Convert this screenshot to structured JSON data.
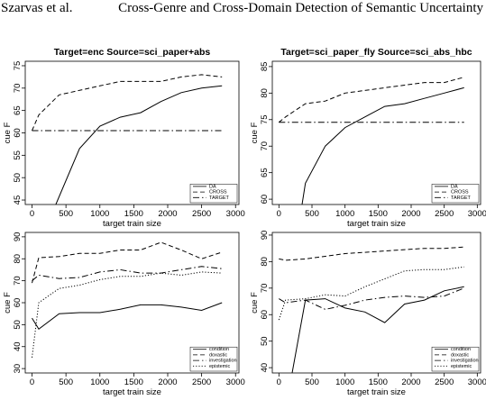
{
  "header": {
    "author": "Szarvas et al.",
    "title": "Cross-Genre and Cross-Domain Detection of Semantic Uncertainty"
  },
  "chart_data": [
    {
      "type": "line",
      "title": "Target=enc Source=sci_paper+abs",
      "xlabel": "target train size",
      "ylabel": "cue F",
      "xlim": [
        -100,
        3050
      ],
      "ylim": [
        44,
        76
      ],
      "xticks": [
        0,
        500,
        1000,
        1500,
        2000,
        2500,
        3000
      ],
      "yticks": [
        45,
        50,
        55,
        60,
        65,
        70,
        75
      ],
      "legend": "bottom-right",
      "series": [
        {
          "name": "DA",
          "dash": "solid",
          "x": [
            350,
            700,
            1000,
            1300,
            1600,
            1900,
            2200,
            2500,
            2800
          ],
          "y": [
            44,
            56.5,
            61.5,
            63.5,
            64.5,
            67,
            69,
            70,
            70.5
          ]
        },
        {
          "name": "CROSS",
          "dash": "dashed",
          "x": [
            0,
            100,
            400,
            700,
            1000,
            1300,
            1600,
            1900,
            2200,
            2500,
            2800
          ],
          "y": [
            60.5,
            64,
            68.5,
            69.5,
            70.5,
            71.5,
            71.5,
            71.5,
            72.5,
            73,
            72.5
          ]
        },
        {
          "name": "TARGET",
          "dash": "dashdot",
          "x": [
            0,
            2800
          ],
          "y": [
            60.5,
            60.5
          ]
        }
      ]
    },
    {
      "type": "line",
      "title": "Target=sci_paper_fly Source=sci_abs_hbc",
      "xlabel": "target train size",
      "ylabel": "cue F",
      "xlim": [
        -100,
        3050
      ],
      "ylim": [
        59,
        86
      ],
      "xticks": [
        0,
        500,
        1000,
        1500,
        2000,
        2500,
        3000
      ],
      "yticks": [
        60,
        65,
        70,
        75,
        80,
        85
      ],
      "legend": "bottom-right",
      "series": [
        {
          "name": "DA",
          "dash": "solid",
          "x": [
            350,
            400,
            700,
            1000,
            1300,
            1600,
            1900,
            2200,
            2500,
            2800
          ],
          "y": [
            59,
            63,
            70,
            73.5,
            75.5,
            77.5,
            78,
            79,
            80,
            81
          ]
        },
        {
          "name": "CROSS",
          "dash": "dashed",
          "x": [
            0,
            100,
            400,
            700,
            1000,
            1300,
            1600,
            1900,
            2200,
            2500,
            2800
          ],
          "y": [
            74.5,
            75.5,
            78,
            78.5,
            80,
            80.5,
            81,
            81.5,
            82,
            82,
            83
          ]
        },
        {
          "name": "TARGET",
          "dash": "dashdot",
          "x": [
            0,
            2800
          ],
          "y": [
            74.5,
            74.5
          ]
        }
      ]
    },
    {
      "type": "line",
      "title": "",
      "xlabel": "target train size",
      "ylabel": "cue F",
      "xlim": [
        -100,
        3050
      ],
      "ylim": [
        28,
        92
      ],
      "xticks": [
        0,
        500,
        1000,
        1500,
        2000,
        2500,
        3000
      ],
      "yticks": [
        30,
        40,
        50,
        60,
        70,
        80,
        90
      ],
      "legend": "bottom-right",
      "series": [
        {
          "name": "condition",
          "dash": "solid",
          "x": [
            0,
            100,
            400,
            700,
            1000,
            1300,
            1600,
            1900,
            2200,
            2500,
            2800
          ],
          "y": [
            53,
            48,
            55,
            55.5,
            55.5,
            57,
            59,
            59,
            58,
            56.5,
            60
          ]
        },
        {
          "name": "doxastic",
          "dash": "dashed",
          "x": [
            0,
            100,
            400,
            700,
            1000,
            1300,
            1600,
            1900,
            2200,
            2500,
            2800
          ],
          "y": [
            69,
            80.5,
            81,
            82.5,
            82.5,
            84,
            84,
            87.5,
            84,
            80,
            83
          ]
        },
        {
          "name": "investigation",
          "dash": "dashdot",
          "x": [
            0,
            100,
            400,
            700,
            1000,
            1300,
            1600,
            1900,
            2200,
            2500,
            2800
          ],
          "y": [
            70,
            72.5,
            71,
            71.5,
            74,
            75,
            73.5,
            73.5,
            75,
            76.5,
            75.5
          ]
        },
        {
          "name": "epistemic",
          "dash": "dotted",
          "x": [
            0,
            100,
            400,
            700,
            1000,
            1300,
            1600,
            1900,
            2200,
            2500,
            2800
          ],
          "y": [
            35,
            60,
            66.5,
            68,
            70.5,
            72,
            72,
            73.5,
            72.5,
            74,
            73.5
          ]
        }
      ]
    },
    {
      "type": "line",
      "title": "",
      "xlabel": "target train size",
      "ylabel": "cue F",
      "xlim": [
        -100,
        3050
      ],
      "ylim": [
        38,
        91
      ],
      "xticks": [
        0,
        500,
        1000,
        1500,
        2000,
        2500,
        3000
      ],
      "yticks": [
        40,
        50,
        60,
        70,
        80,
        90
      ],
      "legend": "bottom-right",
      "series": [
        {
          "name": "condition",
          "dash": "solid",
          "x": [
            200,
            400,
            700,
            1000,
            1300,
            1600,
            1900,
            2200,
            2500,
            2800
          ],
          "y": [
            38,
            65.5,
            66,
            62.5,
            61,
            57,
            64,
            65.5,
            69,
            70.5
          ]
        },
        {
          "name": "doxastic",
          "dash": "dashed",
          "x": [
            0,
            100,
            400,
            700,
            1000,
            1300,
            1600,
            1900,
            2200,
            2500,
            2800
          ],
          "y": [
            81,
            80.5,
            81,
            82,
            83,
            83.5,
            84,
            84.5,
            85,
            85,
            85.5
          ]
        },
        {
          "name": "investigation",
          "dash": "dashdot",
          "x": [
            0,
            100,
            400,
            700,
            1000,
            1300,
            1600,
            1900,
            2200,
            2500,
            2800
          ],
          "y": [
            66,
            64.5,
            65.5,
            62,
            63.5,
            65.5,
            66.5,
            67,
            66.5,
            67,
            70
          ]
        },
        {
          "name": "epistemic",
          "dash": "dotted",
          "x": [
            0,
            100,
            400,
            700,
            1000,
            1300,
            1600,
            1900,
            2200,
            2500,
            2800
          ],
          "y": [
            58,
            65.5,
            66,
            67.5,
            67,
            70.5,
            73.5,
            76.5,
            77,
            77,
            78
          ]
        }
      ]
    }
  ]
}
